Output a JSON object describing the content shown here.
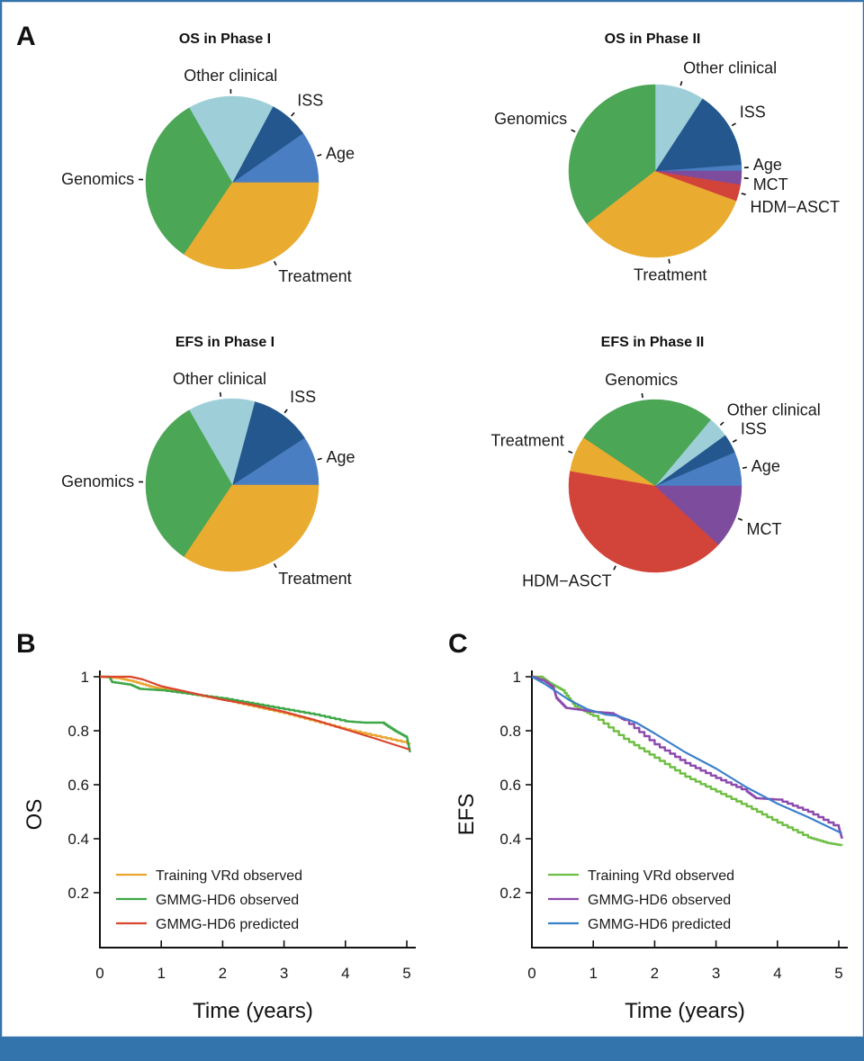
{
  "panel_labels": {
    "a": "A",
    "b": "B",
    "c": "C"
  },
  "chart_data": [
    {
      "type": "pie",
      "id": "os-phase1",
      "title": "OS in Phase I",
      "start": "east, counterclockwise",
      "slices": [
        {
          "label": "Age",
          "value": 9.7,
          "color": "#4a7ec2"
        },
        {
          "label": "ISS",
          "value": 7.5,
          "color": "#23578e"
        },
        {
          "label": "Other clinical",
          "value": 16.1,
          "color": "#9ecfd8"
        },
        {
          "label": "Genomics",
          "value": 32.3,
          "color": "#4ba655"
        },
        {
          "label": "Treatment",
          "value": 34.4,
          "color": "#e9ab30"
        }
      ]
    },
    {
      "type": "pie",
      "id": "os-phase2",
      "title": "OS in Phase II",
      "start": "east, counterclockwise",
      "slices": [
        {
          "label": "Age",
          "value": 1.2,
          "color": "#4a7ec2"
        },
        {
          "label": "ISS",
          "value": 14.6,
          "color": "#23578e"
        },
        {
          "label": "Other clinical",
          "value": 9.2,
          "color": "#9ecfd8"
        },
        {
          "label": "Genomics",
          "value": 35.5,
          "color": "#4ba655"
        },
        {
          "label": "Treatment",
          "value": 33.9,
          "color": "#e9ab30"
        },
        {
          "label": "HDM−ASCT",
          "value": 3.1,
          "color": "#d2443a"
        },
        {
          "label": "MCT",
          "value": 2.5,
          "color": "#7d4c9c"
        }
      ]
    },
    {
      "type": "pie",
      "id": "efs-phase1",
      "title": "EFS in Phase I",
      "start": "east, counterclockwise",
      "slices": [
        {
          "label": "Age",
          "value": 9.2,
          "color": "#4a7ec2"
        },
        {
          "label": "ISS",
          "value": 11.6,
          "color": "#23578e"
        },
        {
          "label": "Other clinical",
          "value": 12.5,
          "color": "#9ecfd8"
        },
        {
          "label": "Genomics",
          "value": 32.3,
          "color": "#4ba655"
        },
        {
          "label": "Treatment",
          "value": 34.4,
          "color": "#e9ab30"
        }
      ]
    },
    {
      "type": "pie",
      "id": "efs-phase2",
      "title": "EFS in Phase II",
      "start": "east, counterclockwise",
      "slices": [
        {
          "label": "Age",
          "value": 6.4,
          "color": "#4a7ec2"
        },
        {
          "label": "ISS",
          "value": 3.6,
          "color": "#23578e"
        },
        {
          "label": "Other clinical",
          "value": 3.9,
          "color": "#9ecfd8"
        },
        {
          "label": "Genomics",
          "value": 26.7,
          "color": "#4ba655"
        },
        {
          "label": "Treatment",
          "value": 6.7,
          "color": "#e9ab30"
        },
        {
          "label": "HDM−ASCT",
          "value": 40.8,
          "color": "#d2443a"
        },
        {
          "label": "MCT",
          "value": 11.9,
          "color": "#7d4c9c"
        }
      ]
    },
    {
      "type": "line",
      "id": "os-curve",
      "panel": "B",
      "xlabel": "Time (years)",
      "ylabel": "OS",
      "xlim": [
        0,
        5.1
      ],
      "ylim": [
        0,
        1.02
      ],
      "xticks": [
        "0",
        "1",
        "2",
        "3",
        "4",
        "5"
      ],
      "yticks": [
        "0.2",
        "0.4",
        "0.6",
        "0.8",
        "1"
      ],
      "legend_position": "bottom-left",
      "series": [
        {
          "name": "Training VRd observed",
          "color": "#eaa52e",
          "x": [
            0,
            0.3,
            0.5,
            0.8,
            1.0,
            1.5,
            2.0,
            2.5,
            3.0,
            3.5,
            4.0,
            4.5,
            5.0,
            5.05
          ],
          "y": [
            1.0,
            0.995,
            0.985,
            0.965,
            0.955,
            0.935,
            0.915,
            0.89,
            0.865,
            0.835,
            0.805,
            0.78,
            0.755,
            0.75
          ]
        },
        {
          "name": "GMMG-HD6 observed",
          "color": "#3ea748",
          "x": [
            0,
            0.15,
            0.2,
            0.5,
            0.65,
            1.0,
            1.5,
            2.0,
            2.5,
            3.0,
            3.5,
            4.0,
            4.3,
            4.6,
            4.8,
            5.0,
            5.05
          ],
          "y": [
            1.0,
            1.0,
            0.98,
            0.97,
            0.955,
            0.95,
            0.935,
            0.92,
            0.9,
            0.88,
            0.86,
            0.835,
            0.83,
            0.83,
            0.8,
            0.775,
            0.72
          ]
        },
        {
          "name": "GMMG-HD6 predicted",
          "color": "#d9452e",
          "x": [
            0,
            0.25,
            0.5,
            0.7,
            1.0,
            1.5,
            2.0,
            2.5,
            3.0,
            3.5,
            4.0,
            4.5,
            5.05
          ],
          "y": [
            1.0,
            1.0,
            1.0,
            0.99,
            0.965,
            0.94,
            0.915,
            0.895,
            0.87,
            0.84,
            0.805,
            0.77,
            0.73
          ]
        }
      ]
    },
    {
      "type": "line",
      "id": "efs-curve",
      "panel": "C",
      "xlabel": "Time (years)",
      "ylabel": "EFS",
      "xlim": [
        0,
        5.1
      ],
      "ylim": [
        0,
        1.02
      ],
      "xticks": [
        "0",
        "1",
        "2",
        "3",
        "4",
        "5"
      ],
      "yticks": [
        "0.2",
        "0.4",
        "0.6",
        "0.8",
        "1"
      ],
      "legend_position": "bottom-left",
      "series": [
        {
          "name": "Training VRd observed",
          "color": "#6fbe44",
          "x": [
            0,
            0.15,
            0.3,
            0.5,
            0.7,
            1.0,
            1.5,
            2.0,
            2.5,
            3.0,
            3.5,
            4.0,
            4.5,
            4.8,
            5.05
          ],
          "y": [
            1.0,
            1.0,
            0.975,
            0.95,
            0.89,
            0.855,
            0.77,
            0.7,
            0.63,
            0.575,
            0.52,
            0.46,
            0.405,
            0.385,
            0.375
          ]
        },
        {
          "name": "GMMG-HD6 observed",
          "color": "#8d4aad",
          "x": [
            0,
            0.2,
            0.35,
            0.4,
            0.55,
            0.7,
            1.0,
            1.3,
            1.5,
            2.0,
            2.5,
            3.0,
            3.5,
            3.65,
            4.0,
            4.5,
            5.0,
            5.05
          ],
          "y": [
            1.0,
            0.985,
            0.96,
            0.92,
            0.885,
            0.88,
            0.87,
            0.865,
            0.84,
            0.75,
            0.68,
            0.625,
            0.575,
            0.55,
            0.545,
            0.5,
            0.44,
            0.4
          ]
        },
        {
          "name": "GMMG-HD6 predicted",
          "color": "#3c7fc9",
          "x": [
            0,
            0.2,
            0.4,
            0.6,
            0.9,
            1.2,
            1.4,
            1.7,
            2.0,
            2.5,
            3.0,
            3.5,
            4.0,
            4.5,
            5.05
          ],
          "y": [
            1.0,
            0.975,
            0.945,
            0.915,
            0.88,
            0.86,
            0.855,
            0.83,
            0.79,
            0.72,
            0.66,
            0.59,
            0.53,
            0.48,
            0.42
          ]
        }
      ]
    }
  ]
}
